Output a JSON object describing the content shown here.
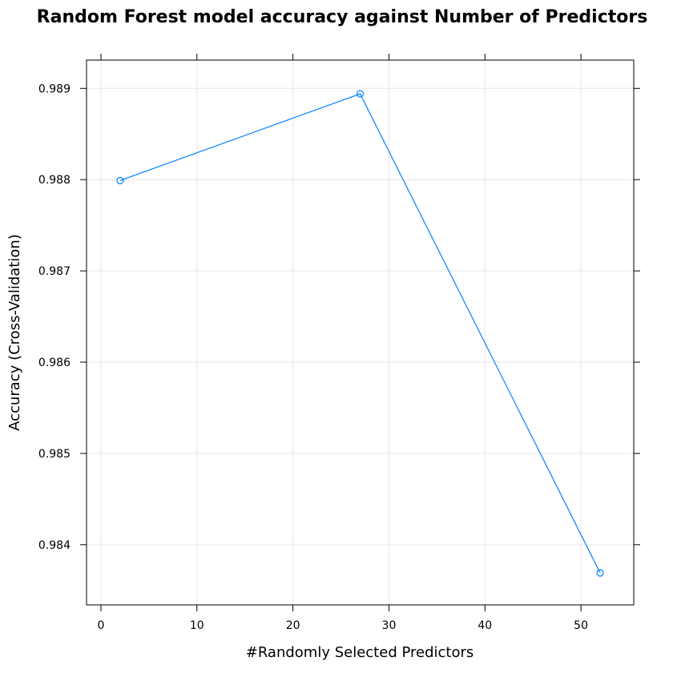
{
  "chart_data": {
    "type": "line",
    "title": "Random Forest model accuracy against Number of Predictors",
    "xlabel": "#Randomly Selected Predictors",
    "ylabel": "Accuracy (Cross-Validation)",
    "x": [
      2,
      27,
      52
    ],
    "series": [
      {
        "values": [
          0.98799,
          0.98894,
          0.98369
        ]
      }
    ],
    "xlim": [
      -1.5,
      55.5
    ],
    "ylim": [
      0.98334,
      0.98931
    ],
    "xticks": [
      0,
      10,
      20,
      30,
      40,
      50
    ],
    "xtick_labels": [
      "0",
      "10",
      "20",
      "30",
      "40",
      "50"
    ],
    "yticks": [
      0.984,
      0.985,
      0.986,
      0.987,
      0.988,
      0.989
    ],
    "ytick_labels": [
      "0.984",
      "0.985",
      "0.986",
      "0.987",
      "0.988",
      "0.989"
    ],
    "grid": true,
    "line_color": "#0080ff",
    "marker": "open-circle"
  }
}
